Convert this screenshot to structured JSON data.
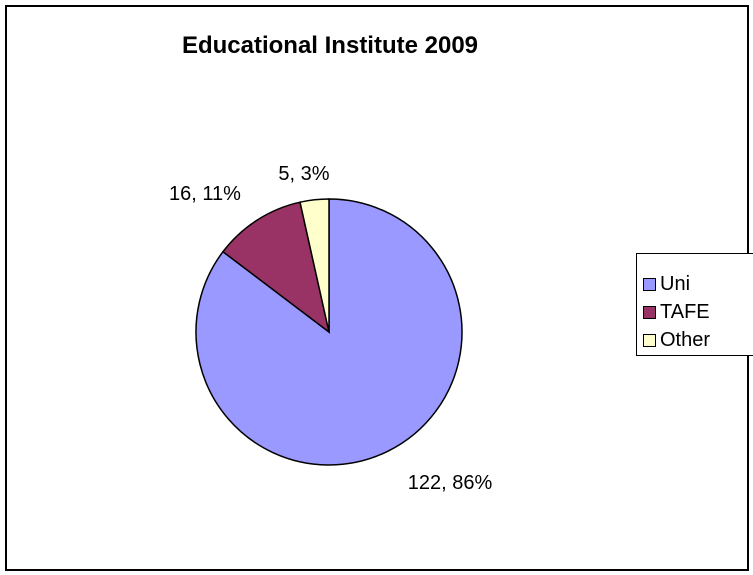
{
  "chart_data": {
    "type": "pie",
    "title": "Educational Institute 2009",
    "slices": [
      {
        "name": "Uni",
        "value": 122,
        "percent": 86,
        "color": "#9999FF",
        "label": "122, 86%"
      },
      {
        "name": "TAFE",
        "value": 16,
        "percent": 11,
        "color": "#993366",
        "label": "16, 11%"
      },
      {
        "name": "Other",
        "value": 5,
        "percent": 3,
        "color": "#FFFFCC",
        "label": "5, 3%"
      }
    ],
    "legend_position": "right"
  }
}
